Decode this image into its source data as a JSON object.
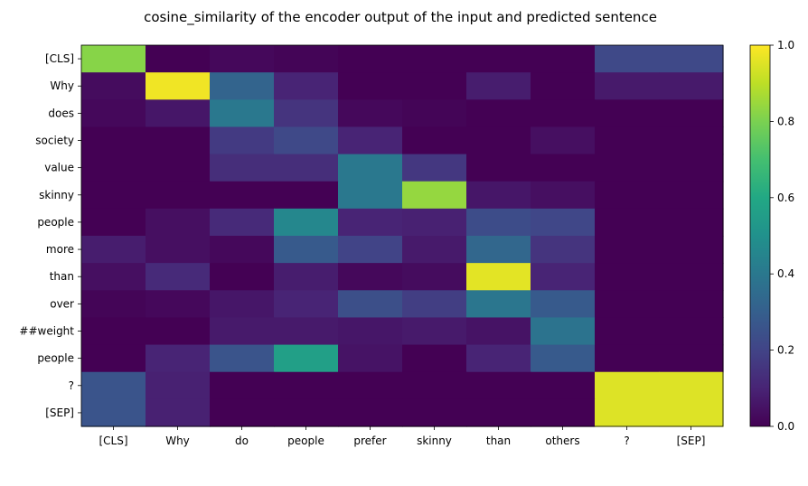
{
  "chart_data": {
    "type": "heatmap",
    "title": "cosine_similarity of the encoder output of the input and predicted sentence",
    "x_labels": [
      "[CLS]",
      "Why",
      "do",
      "people",
      "prefer",
      "skinny",
      "than",
      "others",
      "?",
      "[SEP]"
    ],
    "y_labels": [
      "[CLS]",
      "Why",
      "does",
      "society",
      "value",
      "skinny",
      "people",
      "more",
      "than",
      "over",
      "##weight",
      "people",
      "?",
      "[SEP]"
    ],
    "values": [
      [
        0.82,
        0.0,
        0.02,
        0.01,
        0.0,
        0.0,
        0.0,
        0.0,
        0.22,
        0.22
      ],
      [
        0.03,
        0.98,
        0.32,
        0.1,
        0.0,
        0.0,
        0.08,
        0.0,
        0.07,
        0.07
      ],
      [
        0.02,
        0.06,
        0.4,
        0.15,
        0.02,
        0.01,
        0.0,
        0.0,
        0.0,
        0.0
      ],
      [
        0.0,
        0.0,
        0.17,
        0.22,
        0.1,
        0.0,
        0.0,
        0.04,
        0.0,
        0.0
      ],
      [
        0.0,
        0.0,
        0.13,
        0.13,
        0.4,
        0.16,
        0.0,
        0.0,
        0.0,
        0.0
      ],
      [
        0.0,
        0.0,
        0.0,
        0.0,
        0.4,
        0.84,
        0.06,
        0.04,
        0.0,
        0.0
      ],
      [
        0.0,
        0.04,
        0.12,
        0.46,
        0.1,
        0.09,
        0.23,
        0.21,
        0.0,
        0.0
      ],
      [
        0.08,
        0.04,
        0.02,
        0.28,
        0.2,
        0.07,
        0.33,
        0.15,
        0.0,
        0.0
      ],
      [
        0.04,
        0.12,
        0.0,
        0.08,
        0.02,
        0.03,
        0.96,
        0.1,
        0.0,
        0.0
      ],
      [
        0.01,
        0.02,
        0.06,
        0.1,
        0.24,
        0.18,
        0.39,
        0.28,
        0.0,
        0.0
      ],
      [
        0.0,
        0.0,
        0.07,
        0.07,
        0.06,
        0.07,
        0.05,
        0.38,
        0.0,
        0.0
      ],
      [
        0.0,
        0.1,
        0.26,
        0.56,
        0.05,
        0.0,
        0.1,
        0.28,
        0.0,
        0.0
      ],
      [
        0.26,
        0.09,
        0.0,
        0.0,
        0.0,
        0.0,
        0.0,
        0.0,
        0.95,
        0.95
      ],
      [
        0.26,
        0.09,
        0.0,
        0.0,
        0.0,
        0.0,
        0.0,
        0.0,
        0.95,
        0.95
      ]
    ],
    "colorbar": {
      "min": 0.0,
      "max": 1.0,
      "ticks": [
        "0.0",
        "0.2",
        "0.4",
        "0.6",
        "0.8",
        "1.0"
      ],
      "colormap": "viridis"
    },
    "xlabel": "",
    "ylabel": ""
  }
}
